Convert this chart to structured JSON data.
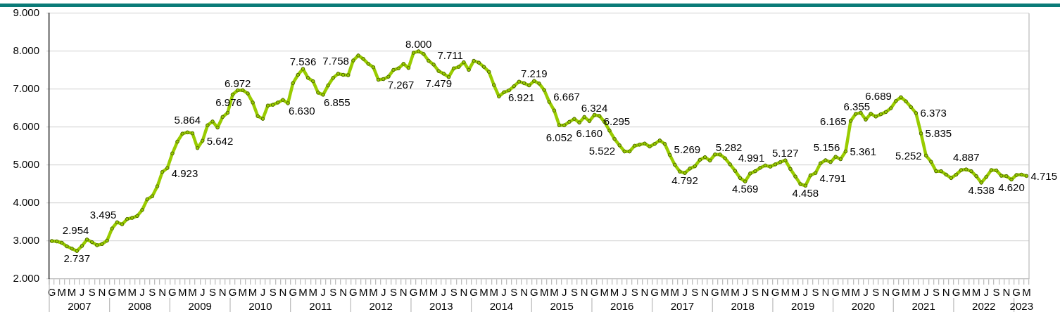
{
  "chart_data": {
    "type": "line",
    "color": "#99cc00",
    "marker": "circle",
    "line_style": "solid",
    "grid": "y",
    "ylim": [
      2000,
      9000
    ],
    "yticks": [
      {
        "value": 2000,
        "label": "2.000"
      },
      {
        "value": 3000,
        "label": "3.000"
      },
      {
        "value": 4000,
        "label": "4.000"
      },
      {
        "value": 5000,
        "label": "5.000"
      },
      {
        "value": 6000,
        "label": "6.000"
      },
      {
        "value": 7000,
        "label": "7.000"
      },
      {
        "value": 8000,
        "label": "8.000"
      },
      {
        "value": 9000,
        "label": "9.000"
      }
    ],
    "categories": [
      "G",
      null,
      "M",
      null,
      "M",
      null,
      "J",
      null,
      "S",
      null,
      "N",
      null,
      "G",
      null,
      "M",
      null,
      "M",
      null,
      "J",
      null,
      "S",
      null,
      "N",
      null,
      "G",
      null,
      "M",
      null,
      "M",
      null,
      "J",
      null,
      "S",
      null,
      "N",
      null,
      "G",
      null,
      "M",
      null,
      "M",
      null,
      "J",
      null,
      "S",
      null,
      "N",
      null,
      "G",
      null,
      "M",
      null,
      "M",
      null,
      "J",
      null,
      "S",
      null,
      "N",
      null,
      "G",
      null,
      "M",
      null,
      "M",
      null,
      "J",
      null,
      "S",
      null,
      "N",
      null,
      "G",
      null,
      "M",
      null,
      "M",
      null,
      "J",
      null,
      "S",
      null,
      "N",
      null,
      "G",
      null,
      "M",
      null,
      "M",
      null,
      "J",
      null,
      "S",
      null,
      "N",
      null,
      "G",
      null,
      "M",
      null,
      "M",
      null,
      "J",
      null,
      "S",
      null,
      "N",
      null,
      "G",
      null,
      "M",
      null,
      "M",
      null,
      "J",
      null,
      "S",
      null,
      "N",
      null,
      "G",
      null,
      "M",
      null,
      "M",
      null,
      "J",
      null,
      "S",
      null,
      "N",
      null,
      "G",
      null,
      "M",
      null,
      "M",
      null,
      "J",
      null,
      "S",
      null,
      "N",
      null,
      "G",
      null,
      "M",
      null,
      "M",
      null,
      "J",
      null,
      "S",
      null,
      "N",
      null,
      "G",
      null,
      "M",
      null,
      "M",
      null,
      "J",
      null,
      "S",
      null,
      "N",
      null,
      "G",
      null,
      "M",
      null,
      "M",
      null,
      "J",
      null,
      "S",
      null,
      "N",
      null,
      "G",
      null,
      "M",
      null,
      "M",
      null,
      "J",
      null,
      "S",
      null,
      "N",
      null,
      "G",
      null,
      "M"
    ],
    "values": [
      3000,
      2990,
      2954,
      2860,
      2800,
      2737,
      2870,
      3040,
      2970,
      2890,
      2920,
      3010,
      3330,
      3495,
      3440,
      3580,
      3610,
      3660,
      3820,
      4100,
      4180,
      4440,
      4820,
      4923,
      5310,
      5620,
      5830,
      5864,
      5840,
      5450,
      5642,
      6050,
      6150,
      5990,
      6270,
      6380,
      6860,
      6972,
      6976,
      6890,
      6650,
      6290,
      6220,
      6570,
      6590,
      6650,
      6720,
      6630,
      7160,
      7380,
      7536,
      7300,
      7210,
      6910,
      6855,
      7100,
      7300,
      7410,
      7380,
      7370,
      7758,
      7890,
      7800,
      7670,
      7580,
      7250,
      7267,
      7330,
      7510,
      7550,
      7670,
      7560,
      7960,
      8000,
      7930,
      7750,
      7650,
      7479,
      7410,
      7320,
      7550,
      7590,
      7711,
      7510,
      7750,
      7700,
      7590,
      7460,
      7110,
      6810,
      6921,
      6970,
      7080,
      7200,
      7160,
      7100,
      7219,
      7150,
      6980,
      6667,
      6440,
      6052,
      6050,
      6140,
      6220,
      6120,
      6270,
      6160,
      6324,
      6295,
      6140,
      5910,
      5690,
      5522,
      5360,
      5360,
      5510,
      5540,
      5570,
      5490,
      5560,
      5650,
      5560,
      5269,
      5010,
      4830,
      4792,
      4910,
      4970,
      5140,
      5210,
      5120,
      5282,
      5280,
      5180,
      5020,
      4850,
      4660,
      4569,
      4780,
      4840,
      4930,
      4991,
      4960,
      5020,
      5080,
      5127,
      4900,
      4700,
      4500,
      4458,
      4730,
      4791,
      5050,
      5130,
      5080,
      5220,
      5156,
      5361,
      6165,
      6350,
      6380,
      6200,
      6355,
      6280,
      6340,
      6400,
      6500,
      6689,
      6790,
      6680,
      6530,
      6373,
      5835,
      5252,
      5090,
      4840,
      4840,
      4750,
      4660,
      4750,
      4870,
      4887,
      4840,
      4710,
      4538,
      4690,
      4870,
      4860,
      4720,
      4710,
      4620,
      4740,
      4750,
      4715
    ],
    "value_labels": [
      null,
      null,
      "2.954",
      null,
      null,
      "2.737",
      null,
      null,
      null,
      null,
      null,
      null,
      null,
      "3.495",
      null,
      null,
      null,
      null,
      null,
      null,
      null,
      null,
      null,
      "4.923",
      null,
      null,
      null,
      "5.864",
      null,
      null,
      "5.642",
      null,
      null,
      null,
      null,
      null,
      null,
      "6.972",
      "6.976",
      null,
      null,
      null,
      null,
      null,
      null,
      null,
      null,
      "6.630",
      null,
      null,
      "7.536",
      null,
      null,
      null,
      "6.855",
      null,
      null,
      null,
      null,
      null,
      "7.758",
      null,
      null,
      null,
      null,
      null,
      "7.267",
      null,
      null,
      null,
      null,
      null,
      null,
      "8.000",
      null,
      null,
      null,
      "7.479",
      null,
      null,
      null,
      null,
      "7.711",
      null,
      null,
      null,
      null,
      null,
      null,
      null,
      "6.921",
      null,
      null,
      null,
      null,
      null,
      "7.219",
      null,
      null,
      "6.667",
      null,
      "6.052",
      null,
      null,
      null,
      null,
      null,
      "6.160",
      "6.324",
      "6.295",
      null,
      null,
      null,
      "5.522",
      null,
      null,
      null,
      null,
      null,
      null,
      null,
      null,
      null,
      "5.269",
      null,
      null,
      "4.792",
      null,
      null,
      null,
      null,
      null,
      "5.282",
      null,
      null,
      null,
      null,
      null,
      "4.569",
      null,
      null,
      null,
      "4.991",
      null,
      null,
      null,
      "5.127",
      null,
      null,
      null,
      "4.458",
      null,
      "4.791",
      null,
      null,
      null,
      null,
      "5.156",
      "5.361",
      "6.165",
      null,
      null,
      null,
      "6.355",
      null,
      null,
      null,
      null,
      "6.689",
      null,
      null,
      null,
      "6.373",
      "5.835",
      "5.252",
      null,
      null,
      null,
      null,
      null,
      null,
      null,
      "4.887",
      null,
      null,
      "4.538",
      null,
      null,
      null,
      null,
      null,
      "4.620",
      null,
      null,
      "4.715"
    ],
    "annotations": [
      "2007",
      "2008",
      "2009",
      "2010",
      "2011",
      "2012",
      "2013",
      "2014",
      "2015",
      "2016",
      "2017",
      "2018",
      "2019",
      "2020",
      "2021",
      "2022",
      "2023"
    ]
  }
}
